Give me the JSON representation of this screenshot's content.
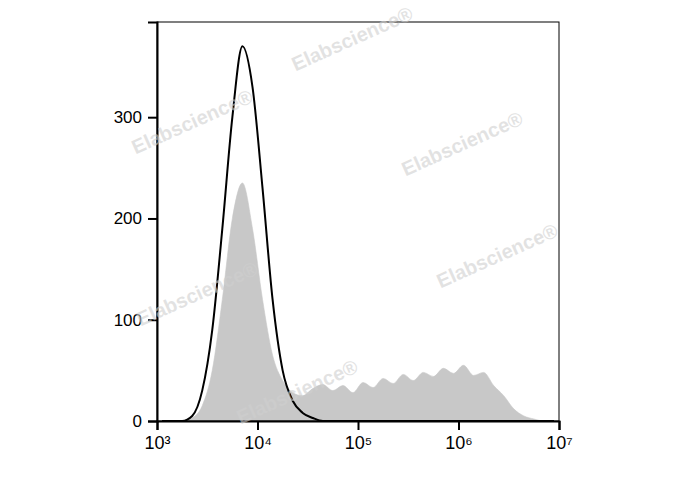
{
  "chart_data": {
    "type": "line",
    "log": "x",
    "x": [
      1122,
      1413,
      1778,
      2239,
      2818,
      3548,
      4467,
      5623,
      7079,
      8913,
      11220,
      14125,
      17783,
      22387,
      28184,
      35481,
      44668,
      56234,
      70795,
      89125,
      112202,
      141254,
      177828,
      223872,
      281838,
      354813,
      446684,
      562341,
      707946,
      891251,
      1122018,
      1412538,
      1778279,
      2238721,
      2818383,
      3548134,
      4466836,
      5623413,
      7079458,
      8912509
    ],
    "series": [
      {
        "type": "area",
        "color": "#c8c8c8",
        "values": [
          0,
          0,
          0,
          3,
          15,
          50,
          120,
          200,
          235,
          190,
          120,
          65,
          40,
          28,
          25,
          32,
          36,
          30,
          35,
          28,
          38,
          33,
          42,
          37,
          46,
          40,
          48,
          44,
          52,
          47,
          55,
          45,
          48,
          35,
          25,
          12,
          5,
          2,
          0,
          0
        ]
      },
      {
        "type": "line",
        "color": "#000000",
        "values": [
          0,
          0,
          0,
          5,
          30,
          90,
          190,
          300,
          370,
          330,
          230,
          120,
          50,
          20,
          8,
          3,
          0,
          0,
          0,
          0,
          0,
          0,
          0,
          0,
          0,
          0,
          0,
          0,
          0,
          0,
          0,
          0,
          0,
          0,
          0,
          0,
          0,
          0,
          0,
          0
        ]
      }
    ],
    "xlim": [
      1000,
      10000000
    ],
    "xticks": [
      {
        "value": 1000,
        "label": "10³"
      },
      {
        "value": 10000,
        "label": "10⁴"
      },
      {
        "value": 100000,
        "label": "10⁵"
      },
      {
        "value": 1000000,
        "label": "10⁶"
      },
      {
        "value": 10000000,
        "label": "10⁷"
      }
    ],
    "ylim": [
      0,
      394
    ],
    "yticks": [
      0,
      100,
      200,
      300
    ],
    "annotations": [
      "Elabscience®",
      "Elabscience®",
      "Elabscience®",
      "Elabscience®",
      "Elabscience®",
      "Elabscience®"
    ]
  }
}
